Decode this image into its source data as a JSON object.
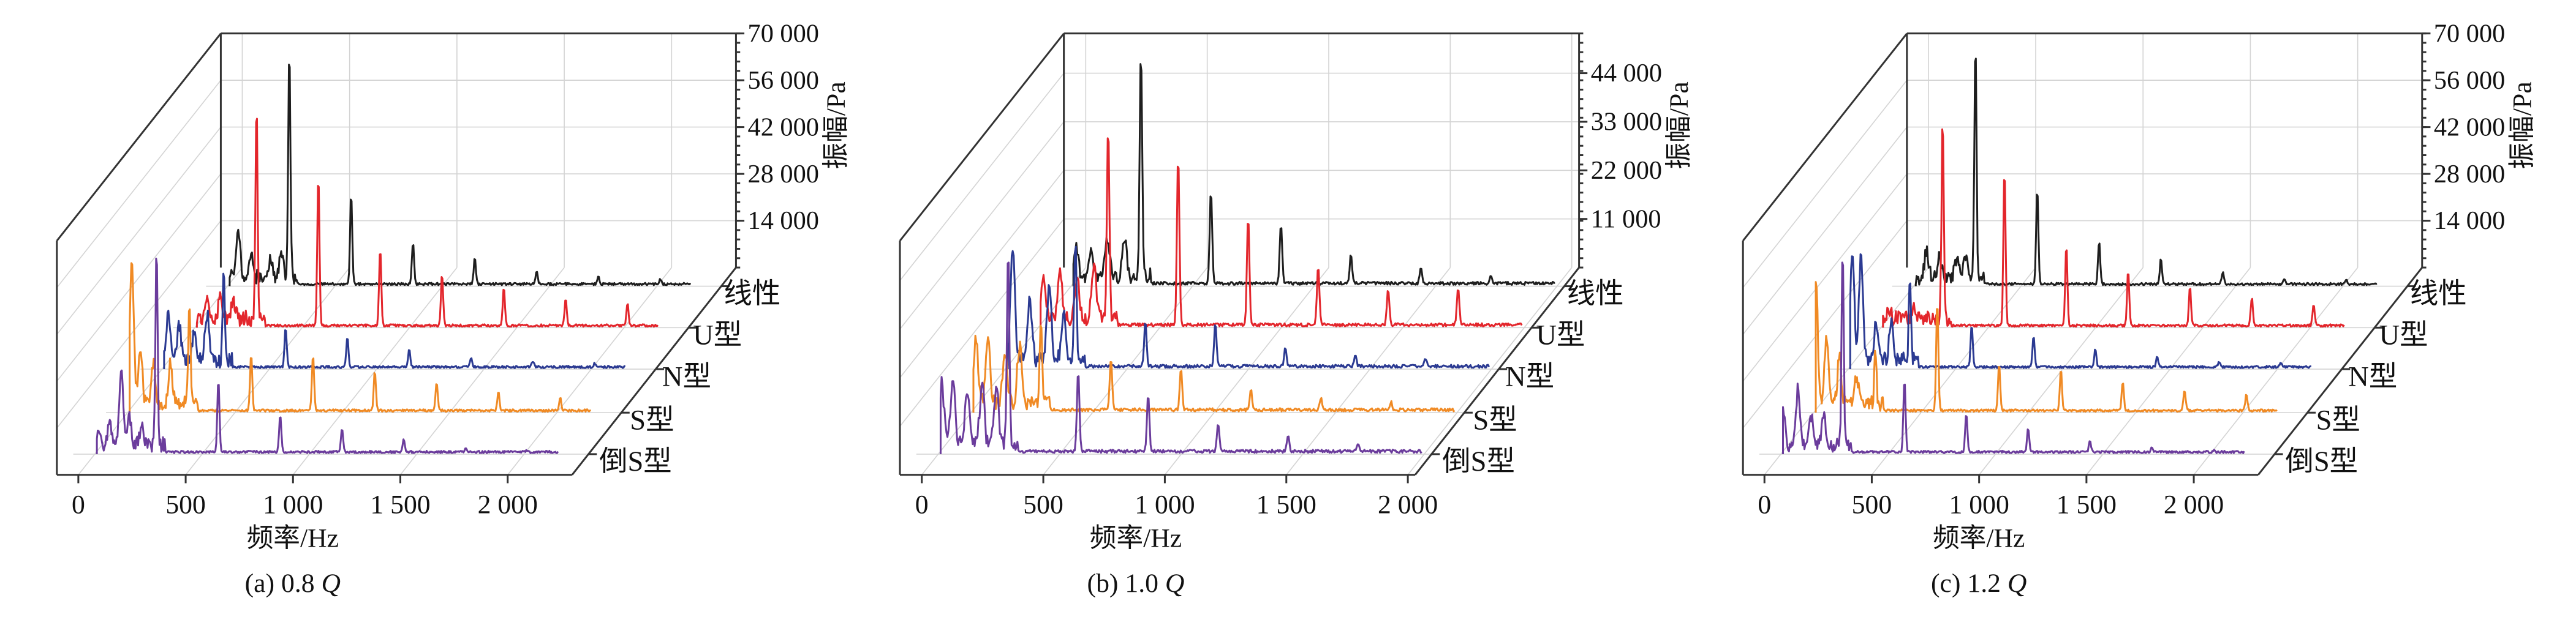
{
  "chart_data": [
    {
      "type": "line",
      "panel": "a",
      "caption": "(a) 0.8",
      "caption_var": "Q",
      "xlabel": "频率/Hz",
      "ylabel": "振幅/Pa",
      "xlim": [
        -100,
        2300
      ],
      "ylim": [
        0,
        70000
      ],
      "xticks": [
        0,
        500,
        1000,
        1500,
        2000
      ],
      "xtick_labels": [
        "0",
        "500",
        "1 000",
        "1 500",
        "2 000"
      ],
      "yticks": [
        14000,
        28000,
        42000,
        56000,
        70000
      ],
      "ytick_labels": [
        "14 000",
        "28 000",
        "42 000",
        "56 000",
        "70 000"
      ],
      "fundamental_hz": 288,
      "freq_range": [
        10,
        2160
      ],
      "series": [
        {
          "name": "线性",
          "color": "#1e1e1e",
          "harmonics": [
            68700,
            27000,
            12500,
            7800,
            3900,
            2000,
            1500
          ],
          "low_freq_peaks": [
            [
              50,
              13000
            ],
            [
              110,
              6000
            ],
            [
              200,
              5000
            ],
            [
              250,
              7000
            ]
          ]
        },
        {
          "name": "U型",
          "color": "#e3262c",
          "harmonics": [
            63000,
            45000,
            23000,
            15500,
            11400,
            8000,
            6700
          ],
          "low_freq_peaks": [
            [
              60,
              6000
            ],
            [
              120,
              7000
            ],
            [
              180,
              5000
            ]
          ]
        },
        {
          "name": "N型",
          "color": "#2b3a92",
          "harmonics": [
            27700,
            11800,
            8800,
            5300,
            2900,
            1800,
            1000
          ],
          "low_freq_peaks": [
            [
              30,
              13000
            ],
            [
              80,
              11000
            ],
            [
              150,
              9000
            ],
            [
              210,
              14000
            ]
          ]
        },
        {
          "name": "S型",
          "color": "#f08a24",
          "harmonics": [
            30000,
            17000,
            16700,
            12000,
            8500,
            5500,
            3800
          ],
          "low_freq_peaks": [
            [
              20,
              43000
            ],
            [
              60,
              16000
            ],
            [
              120,
              13000
            ],
            [
              200,
              12000
            ]
          ]
        },
        {
          "name": "倒S型",
          "color": "#6b3c9c",
          "harmonics": [
            60000,
            21800,
            11000,
            7000,
            3800,
            1200,
            500
          ],
          "low_freq_peaks": [
            [
              20,
              5000
            ],
            [
              70,
              6000
            ],
            [
              123,
              22600
            ],
            [
              160,
              9000
            ],
            [
              220,
              6000
            ]
          ]
        }
      ]
    },
    {
      "type": "line",
      "panel": "b",
      "caption": "(b) 1.0",
      "caption_var": "Q",
      "xlabel": "频率/Hz",
      "ylabel": "振幅/Pa",
      "xlim": [
        -90,
        2030
      ],
      "ylim": [
        0,
        53000
      ],
      "xticks": [
        0,
        500,
        1000,
        1500,
        2000
      ],
      "xtick_labels": [
        "0",
        "500",
        "1 000",
        "1 500",
        "2 000"
      ],
      "yticks": [
        11000,
        22000,
        33000,
        44000
      ],
      "ytick_labels": [
        "11 000",
        "22 000",
        "33 000",
        "44 000"
      ],
      "fundamental_hz": 288,
      "freq_range": [
        10,
        1990
      ],
      "series": [
        {
          "name": "线性",
          "color": "#1e1e1e",
          "harmonics": [
            52000,
            21000,
            13700,
            6500,
            3800,
            2000
          ],
          "low_freq_peaks": [
            [
              20,
              7000
            ],
            [
              80,
              6000
            ],
            [
              150,
              8000
            ],
            [
              220,
              9000
            ]
          ]
        },
        {
          "name": "U型",
          "color": "#e3262c",
          "harmonics": [
            43500,
            38600,
            24800,
            13100,
            8200,
            8200
          ],
          "low_freq_peaks": [
            [
              20,
              10000
            ],
            [
              90,
              11000
            ],
            [
              160,
              9000
            ],
            [
              230,
              12000
            ]
          ]
        },
        {
          "name": "N型",
          "color": "#2b3a92",
          "harmonics": [
            26000,
            10300,
            9800,
            4200,
            2200,
            1800
          ],
          "low_freq_peaks": [
            [
              30,
              25000
            ],
            [
              100,
              14000
            ],
            [
              180,
              16000
            ],
            [
              240,
              10000
            ]
          ]
        },
        {
          "name": "S型",
          "color": "#f08a24",
          "harmonics": [
            19000,
            11800,
            9600,
            4500,
            2600,
            1800
          ],
          "low_freq_peaks": [
            [
              20,
              15000
            ],
            [
              70,
              14000
            ],
            [
              140,
              12000
            ],
            [
              200,
              13000
            ]
          ]
        },
        {
          "name": "倒S型",
          "color": "#6b3c9c",
          "harmonics": [
            44000,
            18500,
            13000,
            6300,
            3400,
            1600
          ],
          "low_freq_peaks": [
            [
              15,
              14000
            ],
            [
              60,
              15000
            ],
            [
              120,
              12000
            ],
            [
              180,
              14000
            ],
            [
              240,
              13000
            ]
          ]
        }
      ]
    },
    {
      "type": "line",
      "panel": "c",
      "caption": "(c) 1.2",
      "caption_var": "Q",
      "xlabel": "频率/Hz",
      "ylabel": "振幅/Pa",
      "xlim": [
        -100,
        2300
      ],
      "ylim": [
        0,
        70000
      ],
      "xticks": [
        0,
        500,
        1000,
        1500,
        2000
      ],
      "xtick_labels": [
        "0",
        "500",
        "1 000",
        "1 500",
        "2 000"
      ],
      "yticks": [
        14000,
        28000,
        42000,
        56000,
        70000
      ],
      "ytick_labels": [
        "14 000",
        "28 000",
        "42 000",
        "56 000",
        "70 000"
      ],
      "fundamental_hz": 288,
      "freq_range": [
        10,
        2160
      ],
      "series": [
        {
          "name": "线性",
          "color": "#1e1e1e",
          "harmonics": [
            69500,
            28700,
            12800,
            7600,
            3600,
            1600,
            1200
          ],
          "low_freq_peaks": [
            [
              60,
              8000
            ],
            [
              120,
              6000
            ],
            [
              200,
              5000
            ],
            [
              240,
              7000
            ]
          ]
        },
        {
          "name": "U型",
          "color": "#e3262c",
          "harmonics": [
            60600,
            47000,
            24000,
            16300,
            11700,
            8400,
            6500
          ],
          "low_freq_peaks": [
            [
              40,
              2000
            ],
            [
              150,
              3000
            ]
          ]
        },
        {
          "name": "N型",
          "color": "#2b3a92",
          "harmonics": [
            24000,
            12700,
            9000,
            5400,
            3000,
            1500,
            1000
          ],
          "low_freq_peaks": [
            [
              20,
              33000
            ],
            [
              60,
              31000
            ],
            [
              130,
              11000
            ],
            [
              200,
              12000
            ]
          ]
        },
        {
          "name": "S型",
          "color": "#f08a24",
          "harmonics": [
            17000,
            33000,
            14400,
            12300,
            8700,
            6300,
            5000
          ],
          "low_freq_peaks": [
            [
              10,
              38000
            ],
            [
              60,
              20000
            ],
            [
              120,
              14000
            ],
            [
              200,
              8000
            ]
          ]
        },
        {
          "name": "倒S型",
          "color": "#6b3c9c",
          "harmonics": [
            58600,
            22000,
            11700,
            7200,
            3400,
            1200,
            500
          ],
          "low_freq_peaks": [
            [
              10,
              10000
            ],
            [
              80,
              17000
            ],
            [
              140,
              9000
            ],
            [
              200,
              10000
            ]
          ]
        }
      ]
    }
  ]
}
